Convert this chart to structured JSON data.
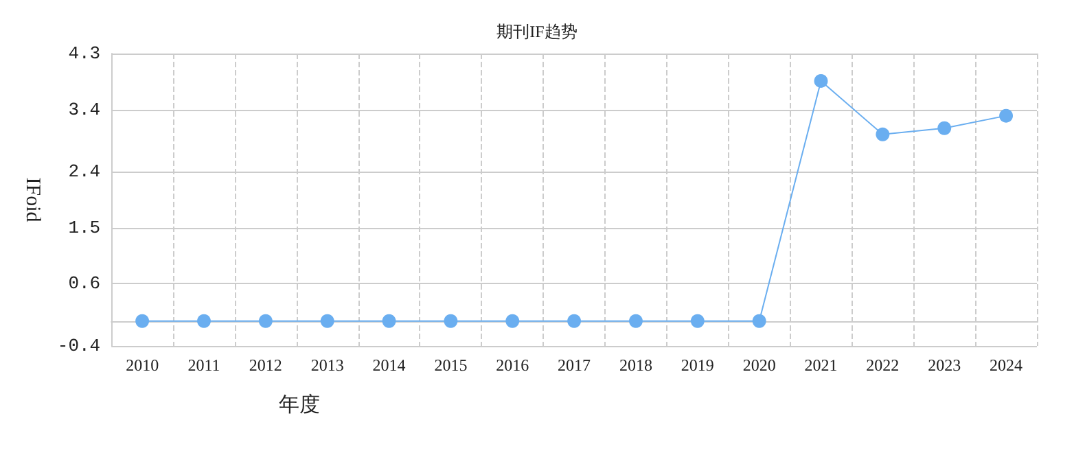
{
  "chart_data": {
    "type": "line",
    "title": "期刊IF趋势",
    "xlabel": "年度",
    "ylabel": "IFoid",
    "categories": [
      "2010",
      "2011",
      "2012",
      "2013",
      "2014",
      "2015",
      "2016",
      "2017",
      "2018",
      "2019",
      "2020",
      "2021",
      "2022",
      "2023",
      "2024"
    ],
    "series": [
      {
        "color": "#6aaef0",
        "values": [
          0,
          0,
          0,
          0,
          0,
          0,
          0,
          0,
          0,
          0,
          0,
          3.86,
          3.0,
          3.1,
          3.3
        ]
      }
    ],
    "ylim": [
      -0.4,
      4.3
    ],
    "yticks": [
      -0.4,
      0.6,
      1.5,
      2.4,
      3.4,
      4.3
    ],
    "grid": true,
    "marker": "circle",
    "line_style": "solid"
  }
}
